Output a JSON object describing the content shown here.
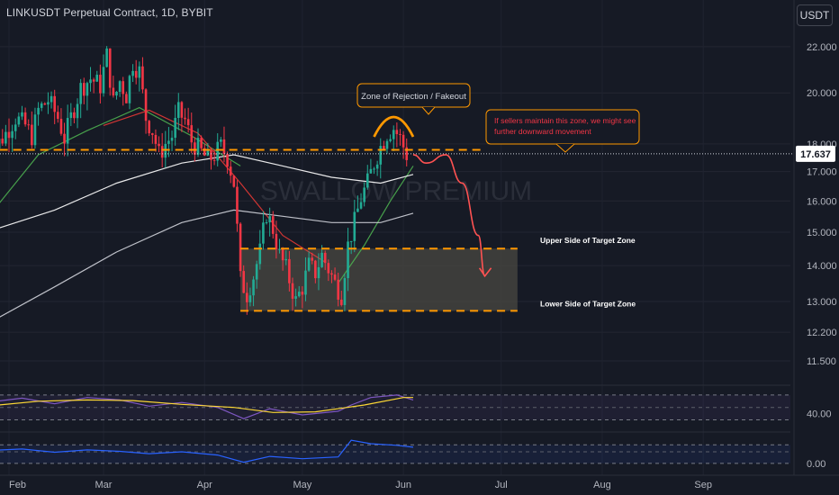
{
  "header": {
    "title": "LINKUSDT Perpetual Contract, 1D, BYBIT",
    "currency": "USDT"
  },
  "colors": {
    "background": "#161a25",
    "up": "#22ab94",
    "down": "#f23645",
    "annotation": "#ff9800",
    "projection": "#ff5252",
    "ma_fast": "#4caf50",
    "ma_mid": "#e53935",
    "ma_slow": "#ffffff",
    "ma_long": "#d1d4dc",
    "rsi": "#7e57c2",
    "rsi_ma": "#fdd835",
    "osc": "#2962ff"
  },
  "chart_data": [
    {
      "type": "candlestick",
      "title": "LINKUSDT Perpetual Contract, 1D, BYBIT",
      "watermark": "SWALLOW PREMIUM",
      "x_labels": [
        "Feb",
        "Mar",
        "Apr",
        "May",
        "Jun",
        "Jul",
        "Aug",
        "Sep"
      ],
      "y_ticks": [
        22.0,
        20.0,
        18.0,
        17.0,
        16.0,
        15.0,
        14.0,
        13.0,
        12.2,
        11.5
      ],
      "y_tick_labels": [
        "22.000",
        "20.000",
        "18.000",
        "17.000",
        "16.000",
        "15.000",
        "14.000",
        "13.000",
        "12.200",
        "11.500"
      ],
      "y_scale": "log",
      "ylim": [
        11.1,
        23.0
      ],
      "last_price": 17.637,
      "last_price_label": "17.637",
      "ohlc_close_path": [
        {
          "date": "2024-01-25",
          "close": 16.2
        },
        {
          "date": "2024-01-27",
          "close": 17.2
        },
        {
          "date": "2024-01-29",
          "close": 17.9
        },
        {
          "date": "2024-02-01",
          "close": 18.4
        },
        {
          "date": "2024-02-04",
          "close": 19.0
        },
        {
          "date": "2024-02-07",
          "close": 18.7
        },
        {
          "date": "2024-02-09",
          "close": 18.3
        },
        {
          "date": "2024-02-11",
          "close": 19.3
        },
        {
          "date": "2024-02-14",
          "close": 19.7
        },
        {
          "date": "2024-02-17",
          "close": 19.0
        },
        {
          "date": "2024-02-19",
          "close": 18.2
        },
        {
          "date": "2024-02-22",
          "close": 19.4
        },
        {
          "date": "2024-02-24",
          "close": 20.2
        },
        {
          "date": "2024-02-27",
          "close": 20.6
        },
        {
          "date": "2024-03-01",
          "close": 20.3
        },
        {
          "date": "2024-03-03",
          "close": 21.6
        },
        {
          "date": "2024-03-05",
          "close": 19.6
        },
        {
          "date": "2024-03-07",
          "close": 20.5
        },
        {
          "date": "2024-03-09",
          "close": 19.9
        },
        {
          "date": "2024-03-11",
          "close": 21.3
        },
        {
          "date": "2024-03-13",
          "close": 20.9
        },
        {
          "date": "2024-03-15",
          "close": 19.0
        },
        {
          "date": "2024-03-17",
          "close": 18.5
        },
        {
          "date": "2024-03-19",
          "close": 17.6
        },
        {
          "date": "2024-03-21",
          "close": 18.0
        },
        {
          "date": "2024-03-23",
          "close": 18.3
        },
        {
          "date": "2024-03-25",
          "close": 19.2
        },
        {
          "date": "2024-03-27",
          "close": 18.9
        },
        {
          "date": "2024-03-29",
          "close": 18.1
        },
        {
          "date": "2024-04-01",
          "close": 17.7
        },
        {
          "date": "2024-04-03",
          "close": 17.4
        },
        {
          "date": "2024-04-05",
          "close": 17.6
        },
        {
          "date": "2024-04-07",
          "close": 17.9
        },
        {
          "date": "2024-04-09",
          "close": 17.5
        },
        {
          "date": "2024-04-11",
          "close": 16.6
        },
        {
          "date": "2024-04-13",
          "close": 13.6
        },
        {
          "date": "2024-04-15",
          "close": 13.2
        },
        {
          "date": "2024-04-17",
          "close": 13.7
        },
        {
          "date": "2024-04-19",
          "close": 14.4
        },
        {
          "date": "2024-04-21",
          "close": 15.6
        },
        {
          "date": "2024-04-23",
          "close": 15.1
        },
        {
          "date": "2024-04-25",
          "close": 14.3
        },
        {
          "date": "2024-04-27",
          "close": 13.9
        },
        {
          "date": "2024-04-30",
          "close": 13.0
        },
        {
          "date": "2024-05-02",
          "close": 13.4
        },
        {
          "date": "2024-05-04",
          "close": 14.0
        },
        {
          "date": "2024-05-06",
          "close": 13.8
        },
        {
          "date": "2024-05-08",
          "close": 14.3
        },
        {
          "date": "2024-05-10",
          "close": 13.9
        },
        {
          "date": "2024-05-12",
          "close": 13.5
        },
        {
          "date": "2024-05-14",
          "close": 13.2
        },
        {
          "date": "2024-05-16",
          "close": 14.6
        },
        {
          "date": "2024-05-18",
          "close": 15.3
        },
        {
          "date": "2024-05-20",
          "close": 16.1
        },
        {
          "date": "2024-05-22",
          "close": 16.6
        },
        {
          "date": "2024-05-24",
          "close": 17.3
        },
        {
          "date": "2024-05-26",
          "close": 17.9
        },
        {
          "date": "2024-05-28",
          "close": 18.4
        },
        {
          "date": "2024-05-30",
          "close": 18.6
        },
        {
          "date": "2024-06-01",
          "close": 18.2
        },
        {
          "date": "2024-06-03",
          "close": 17.6
        }
      ],
      "moving_averages": [
        {
          "color_key": "ma_fast",
          "points": [
            {
              "date": "2024-01-25",
              "value": 15.4
            },
            {
              "date": "2024-02-10",
              "value": 17.6
            },
            {
              "date": "2024-02-25",
              "value": 18.5
            },
            {
              "date": "2024-03-12",
              "value": 19.4
            },
            {
              "date": "2024-03-28",
              "value": 18.3
            },
            {
              "date": "2024-04-12",
              "value": 17.2
            }
          ]
        },
        {
          "color_key": "ma_mid",
          "points": [
            {
              "date": "2024-03-01",
              "value": 18.7
            },
            {
              "date": "2024-03-15",
              "value": 19.3
            },
            {
              "date": "2024-03-30",
              "value": 18.4
            },
            {
              "date": "2024-04-12",
              "value": 16.6
            },
            {
              "date": "2024-04-25",
              "value": 14.9
            },
            {
              "date": "2024-05-08",
              "value": 14.1
            }
          ]
        },
        {
          "color_key": "ma_fast",
          "points": [
            {
              "date": "2024-05-12",
              "value": 13.5
            },
            {
              "date": "2024-05-20",
              "value": 14.6
            },
            {
              "date": "2024-05-28",
              "value": 16.0
            },
            {
              "date": "2024-06-04",
              "value": 17.2
            }
          ]
        },
        {
          "color_key": "ma_slow",
          "points": [
            {
              "date": "2024-01-25",
              "value": 15.0
            },
            {
              "date": "2024-02-15",
              "value": 15.7
            },
            {
              "date": "2024-03-05",
              "value": 16.6
            },
            {
              "date": "2024-03-25",
              "value": 17.3
            },
            {
              "date": "2024-04-10",
              "value": 17.6
            },
            {
              "date": "2024-04-25",
              "value": 17.2
            },
            {
              "date": "2024-05-10",
              "value": 16.8
            },
            {
              "date": "2024-05-25",
              "value": 16.6
            },
            {
              "date": "2024-06-04",
              "value": 16.9
            }
          ]
        },
        {
          "color_key": "ma_long",
          "points": [
            {
              "date": "2024-01-25",
              "value": 12.4
            },
            {
              "date": "2024-02-15",
              "value": 13.4
            },
            {
              "date": "2024-03-05",
              "value": 14.4
            },
            {
              "date": "2024-03-25",
              "value": 15.3
            },
            {
              "date": "2024-04-10",
              "value": 15.7
            },
            {
              "date": "2024-04-25",
              "value": 15.5
            },
            {
              "date": "2024-05-10",
              "value": 15.3
            },
            {
              "date": "2024-05-25",
              "value": 15.3
            },
            {
              "date": "2024-06-04",
              "value": 15.6
            }
          ]
        }
      ],
      "levels": [
        {
          "name": "resistance",
          "value": 17.78,
          "from": "2024-01-25",
          "to": "2024-06-26"
        },
        {
          "name": "target_upper",
          "value": 14.5,
          "from": "2024-04-12",
          "to": "2024-07-06"
        },
        {
          "name": "target_lower",
          "value": 12.75,
          "from": "2024-04-12",
          "to": "2024-07-06"
        }
      ],
      "target_zone": {
        "from": "2024-04-12",
        "to": "2024-07-06",
        "low": 12.75,
        "high": 14.5
      },
      "projection": [
        {
          "date": "2024-06-04",
          "value": 17.6
        },
        {
          "date": "2024-06-08",
          "value": 17.3
        },
        {
          "date": "2024-06-14",
          "value": 17.6
        },
        {
          "date": "2024-06-19",
          "value": 16.6
        },
        {
          "date": "2024-06-24",
          "value": 14.9
        },
        {
          "date": "2024-06-26",
          "value": 13.7
        }
      ],
      "rejection_arc": {
        "from": "2024-05-23",
        "to": "2024-06-04",
        "peak": 19.1
      },
      "annotations": [
        {
          "key": "rejection",
          "text": "Zone of Rejection / Fakeout"
        },
        {
          "key": "sellers",
          "text": "If sellers maintain this zone, we might see further downward movement"
        },
        {
          "key": "upper",
          "text": "Upper Side of Target Zone"
        },
        {
          "key": "lower",
          "text": "Lower Side of Target Zone"
        }
      ]
    },
    {
      "type": "line",
      "indicator": "RSI",
      "y_tick_labels": [
        "40.00"
      ],
      "ylim": [
        25,
        80
      ],
      "bands": [
        70,
        50,
        30
      ],
      "series": [
        {
          "color_key": "rsi",
          "values": [
            {
              "date": "2024-01-25",
              "value": 58
            },
            {
              "date": "2024-02-05",
              "value": 65
            },
            {
              "date": "2024-02-15",
              "value": 56
            },
            {
              "date": "2024-02-25",
              "value": 66
            },
            {
              "date": "2024-03-06",
              "value": 62
            },
            {
              "date": "2024-03-15",
              "value": 52
            },
            {
              "date": "2024-03-25",
              "value": 58
            },
            {
              "date": "2024-04-05",
              "value": 50
            },
            {
              "date": "2024-04-13",
              "value": 32
            },
            {
              "date": "2024-04-21",
              "value": 48
            },
            {
              "date": "2024-05-01",
              "value": 38
            },
            {
              "date": "2024-05-12",
              "value": 44
            },
            {
              "date": "2024-05-16",
              "value": 54
            },
            {
              "date": "2024-05-22",
              "value": 66
            },
            {
              "date": "2024-05-30",
              "value": 70
            },
            {
              "date": "2024-06-04",
              "value": 62
            }
          ]
        },
        {
          "color_key": "rsi_ma",
          "values": [
            {
              "date": "2024-01-25",
              "value": 52
            },
            {
              "date": "2024-02-10",
              "value": 60
            },
            {
              "date": "2024-02-25",
              "value": 62
            },
            {
              "date": "2024-03-10",
              "value": 61
            },
            {
              "date": "2024-03-25",
              "value": 55
            },
            {
              "date": "2024-04-10",
              "value": 50
            },
            {
              "date": "2024-04-22",
              "value": 42
            },
            {
              "date": "2024-05-05",
              "value": 43
            },
            {
              "date": "2024-05-20",
              "value": 54
            },
            {
              "date": "2024-06-01",
              "value": 66
            },
            {
              "date": "2024-06-04",
              "value": 66
            }
          ]
        }
      ]
    },
    {
      "type": "line",
      "indicator": "Oscillator",
      "y_tick_labels": [
        "0.00"
      ],
      "ylim": [
        -0.2,
        1.2
      ],
      "bands": [
        0.8,
        0.5,
        0.0
      ],
      "series": [
        {
          "color_key": "osc",
          "values": [
            {
              "date": "2024-01-25",
              "value": 0.55
            },
            {
              "date": "2024-02-05",
              "value": 0.62
            },
            {
              "date": "2024-02-15",
              "value": 0.48
            },
            {
              "date": "2024-02-25",
              "value": 0.58
            },
            {
              "date": "2024-03-06",
              "value": 0.52
            },
            {
              "date": "2024-03-15",
              "value": 0.42
            },
            {
              "date": "2024-03-25",
              "value": 0.5
            },
            {
              "date": "2024-04-05",
              "value": 0.36
            },
            {
              "date": "2024-04-13",
              "value": 0.05
            },
            {
              "date": "2024-04-21",
              "value": 0.3
            },
            {
              "date": "2024-05-01",
              "value": 0.2
            },
            {
              "date": "2024-05-12",
              "value": 0.28
            },
            {
              "date": "2024-05-16",
              "value": 1.0
            },
            {
              "date": "2024-05-22",
              "value": 0.85
            },
            {
              "date": "2024-05-30",
              "value": 0.78
            },
            {
              "date": "2024-06-04",
              "value": 0.7
            }
          ]
        }
      ]
    }
  ]
}
